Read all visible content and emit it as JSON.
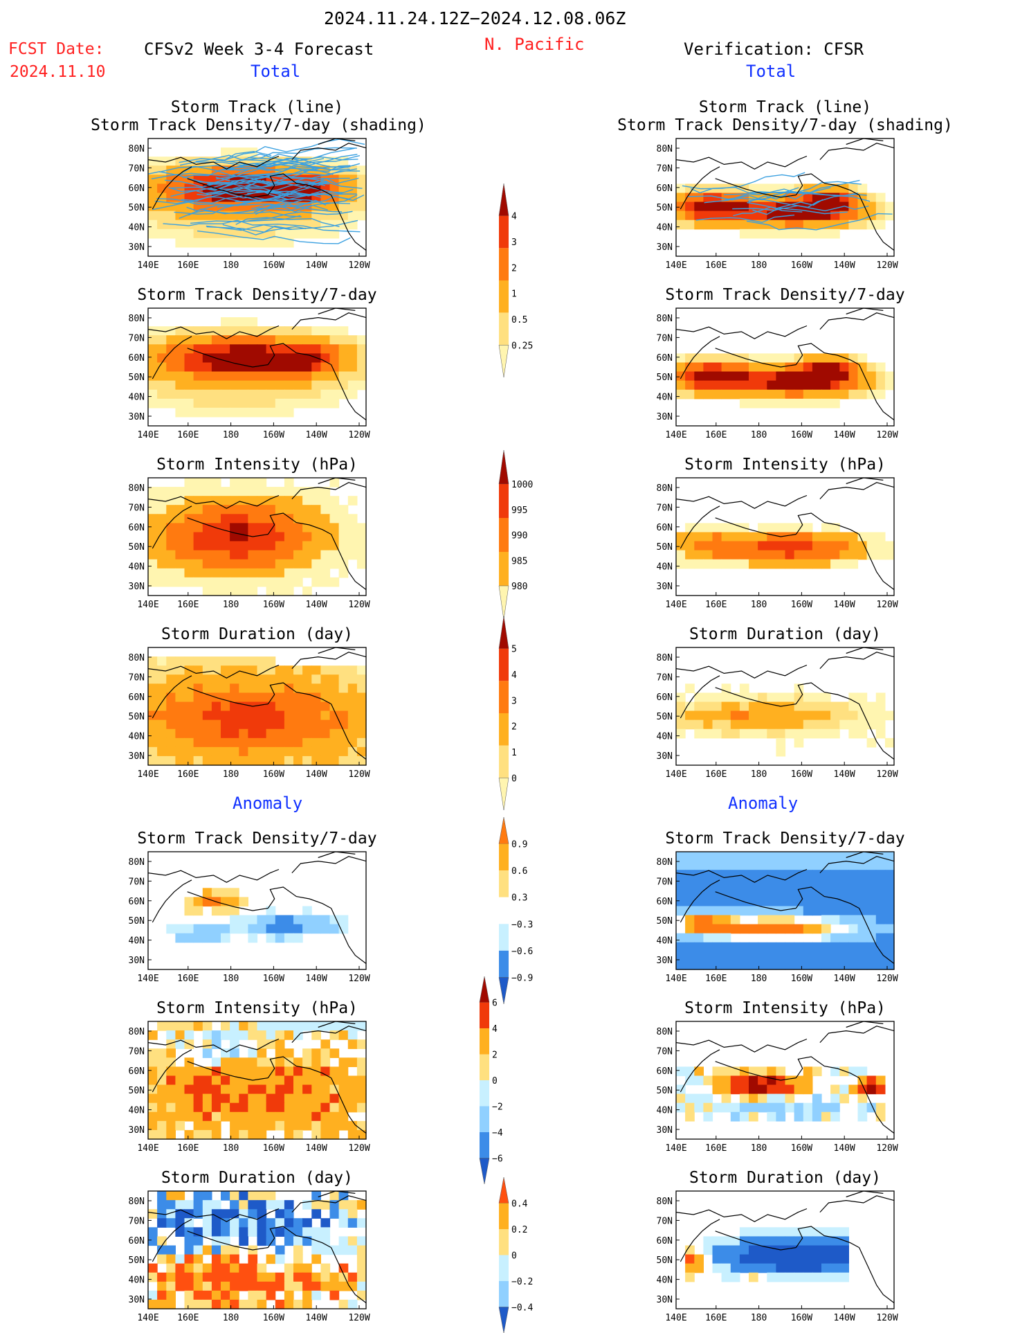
{
  "header": {
    "date_range": "2024.11.24.12Z−2024.12.08.06Z",
    "region": "N. Pacific",
    "fcst_label": "FCST Date:",
    "fcst_date": "2024.11.10",
    "forecast_title": "CFSv2 Week 3-4 Forecast",
    "verification_title": "Verification: CFSR",
    "total_label": "Total",
    "anomaly_label": "Anomaly"
  },
  "colors": {
    "title_red": "#ff2020",
    "title_blue": "#1030ff",
    "warm": [
      "#fff5b0",
      "#ffe080",
      "#ffb020",
      "#ff7a10",
      "#f03a0a",
      "#a00a00"
    ],
    "cool": [
      "#c8f0ff",
      "#90d0ff",
      "#3c8ce8",
      "#1e5ac8"
    ]
  },
  "chart_data": {
    "type": "heatmap",
    "map": {
      "lon_labels": [
        "140E",
        "160E",
        "180",
        "160W",
        "140W",
        "120W"
      ],
      "lat_labels": [
        "80N",
        "70N",
        "60N",
        "50N",
        "40N",
        "30N"
      ],
      "lon_range": [
        140,
        240
      ],
      "lat_range": [
        25,
        85
      ]
    },
    "panels": [
      {
        "id": "fc-track",
        "column": "forecast",
        "section": "total",
        "title_lines": [
          "Storm Track (line)",
          "Storm Track Density/7-day (shading)"
        ],
        "field": "density",
        "has_tracks": true
      },
      {
        "id": "fc-density",
        "column": "forecast",
        "section": "total",
        "title_lines": [
          "Storm Track Density/7-day"
        ],
        "field": "density"
      },
      {
        "id": "fc-intensity",
        "column": "forecast",
        "section": "total",
        "title_lines": [
          "Storm Intensity (hPa)"
        ],
        "field": "intensity"
      },
      {
        "id": "fc-duration",
        "column": "forecast",
        "section": "total",
        "title_lines": [
          "Storm Duration (day)"
        ],
        "field": "duration"
      },
      {
        "id": "fc-anom-density",
        "column": "forecast",
        "section": "anomaly",
        "title_lines": [
          "Storm Track Density/7-day"
        ],
        "field": "anom_density"
      },
      {
        "id": "fc-anom-intensity",
        "column": "forecast",
        "section": "anomaly",
        "title_lines": [
          "Storm Intensity (hPa)"
        ],
        "field": "anom_intensity"
      },
      {
        "id": "fc-anom-duration",
        "column": "forecast",
        "section": "anomaly",
        "title_lines": [
          "Storm Duration (day)"
        ],
        "field": "anom_duration"
      },
      {
        "id": "vf-track",
        "column": "verification",
        "section": "total",
        "title_lines": [
          "Storm Track (line)",
          "Storm Track Density/7-day (shading)"
        ],
        "field": "density",
        "has_tracks": true
      },
      {
        "id": "vf-density",
        "column": "verification",
        "section": "total",
        "title_lines": [
          "Storm Track Density/7-day"
        ],
        "field": "density"
      },
      {
        "id": "vf-intensity",
        "column": "verification",
        "section": "total",
        "title_lines": [
          "Storm Intensity (hPa)"
        ],
        "field": "intensity"
      },
      {
        "id": "vf-duration",
        "column": "verification",
        "section": "total",
        "title_lines": [
          "Storm Duration (day)"
        ],
        "field": "duration"
      },
      {
        "id": "vf-anom-density",
        "column": "verification",
        "section": "anomaly",
        "title_lines": [
          "Storm Track Density/7-day"
        ],
        "field": "anom_density"
      },
      {
        "id": "vf-anom-intensity",
        "column": "verification",
        "section": "anomaly",
        "title_lines": [
          "Storm Intensity (hPa)"
        ],
        "field": "anom_intensity"
      },
      {
        "id": "vf-anom-duration",
        "column": "verification",
        "section": "anomaly",
        "title_lines": [
          "Storm Duration (day)"
        ],
        "field": "anom_duration"
      }
    ],
    "colorbars": [
      {
        "id": "cb-density",
        "field": "density",
        "ticks": [
          "4",
          "3",
          "2",
          "1",
          "0.5",
          "0.25"
        ],
        "colors": [
          "#fff5b0",
          "#ffe080",
          "#ffb020",
          "#ff7a10",
          "#f03a0a",
          "#a00a00"
        ]
      },
      {
        "id": "cb-intensity",
        "field": "intensity",
        "ticks": [
          "1000",
          "995",
          "990",
          "985",
          "980"
        ],
        "colors": [
          "#fff5b0",
          "#ffb020",
          "#ff7a10",
          "#f03a0a",
          "#a00a00"
        ]
      },
      {
        "id": "cb-duration",
        "field": "duration",
        "ticks": [
          "5",
          "4",
          "3",
          "2",
          "1",
          "0"
        ],
        "colors": [
          "#fff5b0",
          "#ffe080",
          "#ffb020",
          "#ff7a10",
          "#f03a0a",
          "#a00a00"
        ]
      },
      {
        "id": "cb-anom-density",
        "field": "anom_density",
        "ticks": [
          "0.9",
          "0.6",
          "0.3",
          "−0.3",
          "−0.6",
          "−0.9"
        ],
        "colors": [
          "#1e5ac8",
          "#3c8ce8",
          "#c8f0ff",
          "#ffffff",
          "#ffe080",
          "#ffb020",
          "#ff7a10"
        ]
      },
      {
        "id": "cb-anom-intensity",
        "field": "anom_intensity",
        "ticks": [
          "6",
          "4",
          "2",
          "0",
          "−2",
          "−4",
          "−6"
        ],
        "colors": [
          "#1e5ac8",
          "#3c8ce8",
          "#90d0ff",
          "#c8f0ff",
          "#ffe080",
          "#ffb020",
          "#f03a0a",
          "#a00a00"
        ]
      },
      {
        "id": "cb-anom-duration",
        "field": "anom_duration",
        "ticks": [
          "0.4",
          "0.2",
          "0",
          "−0.2",
          "−0.4"
        ],
        "colors": [
          "#1e5ac8",
          "#90d0ff",
          "#c8f0ff",
          "#ffe080",
          "#ffb020",
          "#ff5010"
        ]
      }
    ]
  }
}
